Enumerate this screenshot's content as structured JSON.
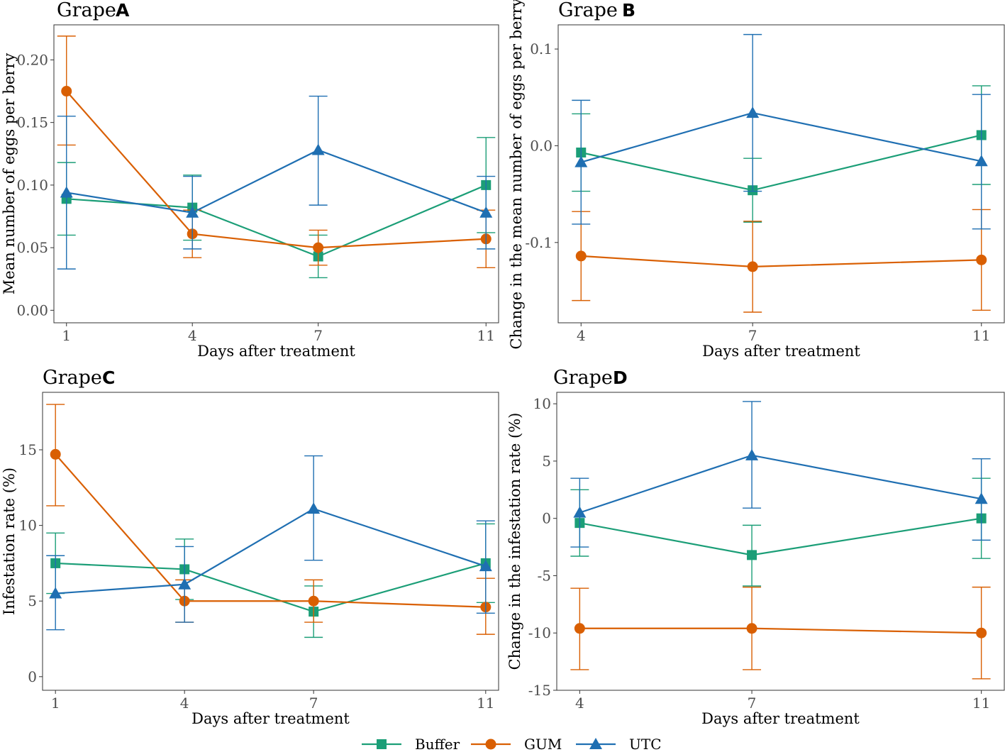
{
  "legend": {
    "items": [
      {
        "name": "Buffer",
        "color": "#1b9e77",
        "marker": "square"
      },
      {
        "name": "GUM",
        "color": "#d95f02",
        "marker": "circle"
      },
      {
        "name": "UTC",
        "color": "#1f6fb2",
        "marker": "triangle"
      }
    ]
  },
  "chart_data": [
    {
      "id": "A",
      "type": "line",
      "title": "Grape",
      "panel_label": "A",
      "xlabel": "Days after treatment",
      "ylabel": "Mean number of eggs per berry",
      "x": [
        1,
        4,
        7,
        11
      ],
      "xlim": [
        0.7,
        11.3
      ],
      "xticks": [
        1,
        4,
        7,
        11
      ],
      "xtick_labels": [
        "1",
        "4",
        "7",
        "11"
      ],
      "ylim": [
        -0.01,
        0.228
      ],
      "yticks": [
        0,
        0.05,
        0.1,
        0.15,
        0.2
      ],
      "ytick_labels": [
        "0.00",
        "0.05",
        "0.10",
        "0.15",
        "0.20"
      ],
      "series": [
        {
          "name": "Buffer",
          "values": [
            0.089,
            0.082,
            0.043,
            0.1
          ],
          "lower": [
            0.06,
            0.056,
            0.026,
            0.062
          ],
          "upper": [
            0.118,
            0.108,
            0.06,
            0.138
          ]
        },
        {
          "name": "GUM",
          "values": [
            0.175,
            0.061,
            0.05,
            0.057
          ],
          "lower": [
            0.132,
            0.042,
            0.036,
            0.034
          ],
          "upper": [
            0.219,
            0.08,
            0.064,
            0.08
          ]
        },
        {
          "name": "UTC",
          "values": [
            0.094,
            0.078,
            0.128,
            0.078
          ],
          "lower": [
            0.033,
            0.049,
            0.084,
            0.049
          ],
          "upper": [
            0.155,
            0.107,
            0.171,
            0.107
          ]
        }
      ]
    },
    {
      "id": "B",
      "type": "line",
      "title": "Grape",
      "panel_label": "B",
      "xlabel": "Days after treatment",
      "ylabel": "Change in the mean number of eggs per berry",
      "x": [
        4,
        7,
        11
      ],
      "xlim": [
        3.6,
        11.4
      ],
      "xticks": [
        4,
        7,
        11
      ],
      "xtick_labels": [
        "4",
        "7",
        "11"
      ],
      "ylim": [
        -0.183,
        0.125
      ],
      "yticks": [
        -0.1,
        0,
        0.1
      ],
      "ytick_labels": [
        "-0.1",
        "0.0",
        "0.1"
      ],
      "series": [
        {
          "name": "Buffer",
          "values": [
            -0.007,
            -0.046,
            0.011
          ],
          "lower": [
            -0.047,
            -0.079,
            -0.04
          ],
          "upper": [
            0.033,
            -0.013,
            0.062
          ]
        },
        {
          "name": "GUM",
          "values": [
            -0.114,
            -0.125,
            -0.118
          ],
          "lower": [
            -0.16,
            -0.172,
            -0.17
          ],
          "upper": [
            -0.068,
            -0.078,
            -0.066
          ]
        },
        {
          "name": "UTC",
          "values": [
            -0.017,
            0.034,
            -0.016
          ],
          "lower": [
            -0.081,
            -0.047,
            -0.086
          ],
          "upper": [
            0.047,
            0.115,
            0.053
          ]
        }
      ]
    },
    {
      "id": "C",
      "type": "line",
      "title": "Grape",
      "panel_label": "C",
      "xlabel": "Days after treatment",
      "ylabel": "Infestation rate (%)",
      "x": [
        1,
        4,
        7,
        11
      ],
      "xlim": [
        0.7,
        11.3
      ],
      "xticks": [
        1,
        4,
        7,
        11
      ],
      "xtick_labels": [
        "1",
        "4",
        "7",
        "11"
      ],
      "ylim": [
        -0.9,
        18.8
      ],
      "yticks": [
        0,
        5,
        10,
        15
      ],
      "ytick_labels": [
        "0",
        "5",
        "10",
        "15"
      ],
      "series": [
        {
          "name": "Buffer",
          "values": [
            7.5,
            7.1,
            4.3,
            7.5
          ],
          "lower": [
            5.5,
            5.1,
            2.6,
            4.9
          ],
          "upper": [
            9.5,
            9.1,
            6.0,
            10.1
          ]
        },
        {
          "name": "GUM",
          "values": [
            14.7,
            5.0,
            5.0,
            4.6
          ],
          "lower": [
            11.3,
            3.6,
            3.6,
            2.8
          ],
          "upper": [
            18.0,
            6.4,
            6.4,
            6.5
          ]
        },
        {
          "name": "UTC",
          "values": [
            5.5,
            6.1,
            11.1,
            7.3
          ],
          "lower": [
            3.1,
            3.6,
            7.7,
            4.2
          ],
          "upper": [
            8.0,
            8.6,
            14.6,
            10.3
          ]
        }
      ]
    },
    {
      "id": "D",
      "type": "line",
      "title": "Grape",
      "panel_label": "D",
      "xlabel": "Days after treatment",
      "ylabel": "Change in the infestation rate (%)",
      "x": [
        4,
        7,
        11
      ],
      "xlim": [
        3.6,
        11.4
      ],
      "xticks": [
        4,
        7,
        11
      ],
      "xtick_labels": [
        "4",
        "7",
        "11"
      ],
      "ylim": [
        -15.0,
        11.0
      ],
      "yticks": [
        -15,
        -10,
        -5,
        0,
        5,
        10
      ],
      "ytick_labels": [
        "-15",
        "-10",
        "-5",
        "0",
        "5",
        "10"
      ],
      "series": [
        {
          "name": "Buffer",
          "values": [
            -0.4,
            -3.2,
            0.0
          ],
          "lower": [
            -3.3,
            -5.9,
            -3.5
          ],
          "upper": [
            2.5,
            -0.6,
            3.5
          ]
        },
        {
          "name": "GUM",
          "values": [
            -9.6,
            -9.6,
            -10.0
          ],
          "lower": [
            -13.2,
            -13.2,
            -14.0
          ],
          "upper": [
            -6.1,
            -6.0,
            -6.0
          ]
        },
        {
          "name": "UTC",
          "values": [
            0.5,
            5.5,
            1.7
          ],
          "lower": [
            -2.5,
            0.9,
            -1.9
          ],
          "upper": [
            3.5,
            10.2,
            5.2
          ]
        }
      ]
    }
  ]
}
